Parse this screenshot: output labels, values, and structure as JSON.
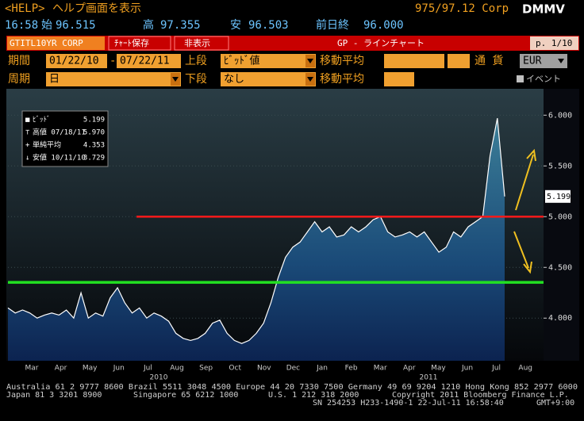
{
  "header": {
    "help_key": "<HELP>",
    "help_text": "ヘルプ画面を表示",
    "security": "975/97.12 Corp",
    "function": "DMMV"
  },
  "quote": {
    "time": "16:58",
    "open_label": "始",
    "open": "96.515",
    "high_label": "高",
    "high": "97.355",
    "low_label": "安",
    "low": "96.503",
    "prev_label": "前日終",
    "prev": "96.000"
  },
  "toolbar": {
    "ticker": "GTITL10YR CORP",
    "save": "ﾁｬｰﾄ保存",
    "hide": "非表示",
    "title": "GP - ラインチャート",
    "page": "p. 1/10"
  },
  "settings": {
    "period_label": "期間",
    "start": "01/22/10",
    "dash": "-",
    "end": "07/22/11",
    "upper_label": "上段",
    "upper": "ﾋﾞｯﾄﾞ値",
    "ma_label": "移動平均",
    "currency_label": "通 貨",
    "currency": "EUR",
    "cycle_label": "周期",
    "cycle": "日",
    "lower_label": "下段",
    "lower": "なし",
    "ma_label2": "移動平均",
    "events": "イベント"
  },
  "chart_data": {
    "type": "area",
    "legend": [
      {
        "name": "ﾋﾞｯﾄﾞ",
        "value": 5.199,
        "label": "5.199"
      },
      {
        "name": "高値 07/18/11",
        "value": 5.97,
        "label": "5.970"
      },
      {
        "name": "単純平均",
        "value": 4.353,
        "label": "4.353"
      },
      {
        "name": "安値 10/11/10",
        "value": 3.729,
        "label": "3.729"
      }
    ],
    "months": [
      "Mar",
      "Apr",
      "May",
      "Jun",
      "Jul",
      "Aug",
      "Sep",
      "Oct",
      "Nov",
      "Dec",
      "Jan",
      "Feb",
      "Mar",
      "Apr",
      "May",
      "Jun",
      "Jul",
      "Aug"
    ],
    "years": [
      "2010",
      "2011"
    ],
    "values": [
      4.1,
      4.05,
      4.08,
      4.05,
      4.0,
      4.03,
      4.05,
      4.03,
      4.08,
      4.0,
      4.25,
      4.0,
      4.05,
      4.02,
      4.2,
      4.3,
      4.15,
      4.05,
      4.1,
      4.0,
      4.05,
      4.02,
      3.97,
      3.85,
      3.8,
      3.78,
      3.8,
      3.85,
      3.95,
      3.98,
      3.85,
      3.78,
      3.75,
      3.78,
      3.85,
      3.95,
      4.15,
      4.4,
      4.6,
      4.7,
      4.75,
      4.85,
      4.95,
      4.85,
      4.9,
      4.8,
      4.82,
      4.9,
      4.85,
      4.9,
      4.97,
      5.0,
      4.85,
      4.8,
      4.82,
      4.85,
      4.8,
      4.85,
      4.75,
      4.65,
      4.7,
      4.85,
      4.8,
      4.9,
      4.95,
      5.0,
      5.6,
      5.97,
      5.199
    ],
    "color": "#ffffff",
    "reference_line": {
      "value": 5,
      "color": "#ff1a1a"
    },
    "average_color": "#22e022",
    "ylim": [
      3.58,
      6.26
    ],
    "yticks": [
      {
        "value": 4,
        "label": "4.000"
      },
      {
        "value": 4.5,
        "label": "4.500"
      },
      {
        "value": 5,
        "label": "5.000"
      },
      {
        "value": 5.5,
        "label": "5.500"
      },
      {
        "value": 6,
        "label": "6.000"
      }
    ],
    "grid": true
  },
  "footer": {
    "line1": "Australia 61 2 9777 8600 Brazil 5511 3048 4500 Europe 44 20 7330 7500 Germany 49 69 9204 1210 Hong Kong 852 2977 6000",
    "japan": "Japan 81 3 3201 8900",
    "singapore": "Singapore 65 6212 1000",
    "us": "U.S. 1 212 318 2000",
    "copyright": "Copyright 2011 Bloomberg Finance L.P.",
    "session": "SN 254253 H233-1490-1 22-Jul-11 16:58:40",
    "tz": "GMT+9:00"
  }
}
